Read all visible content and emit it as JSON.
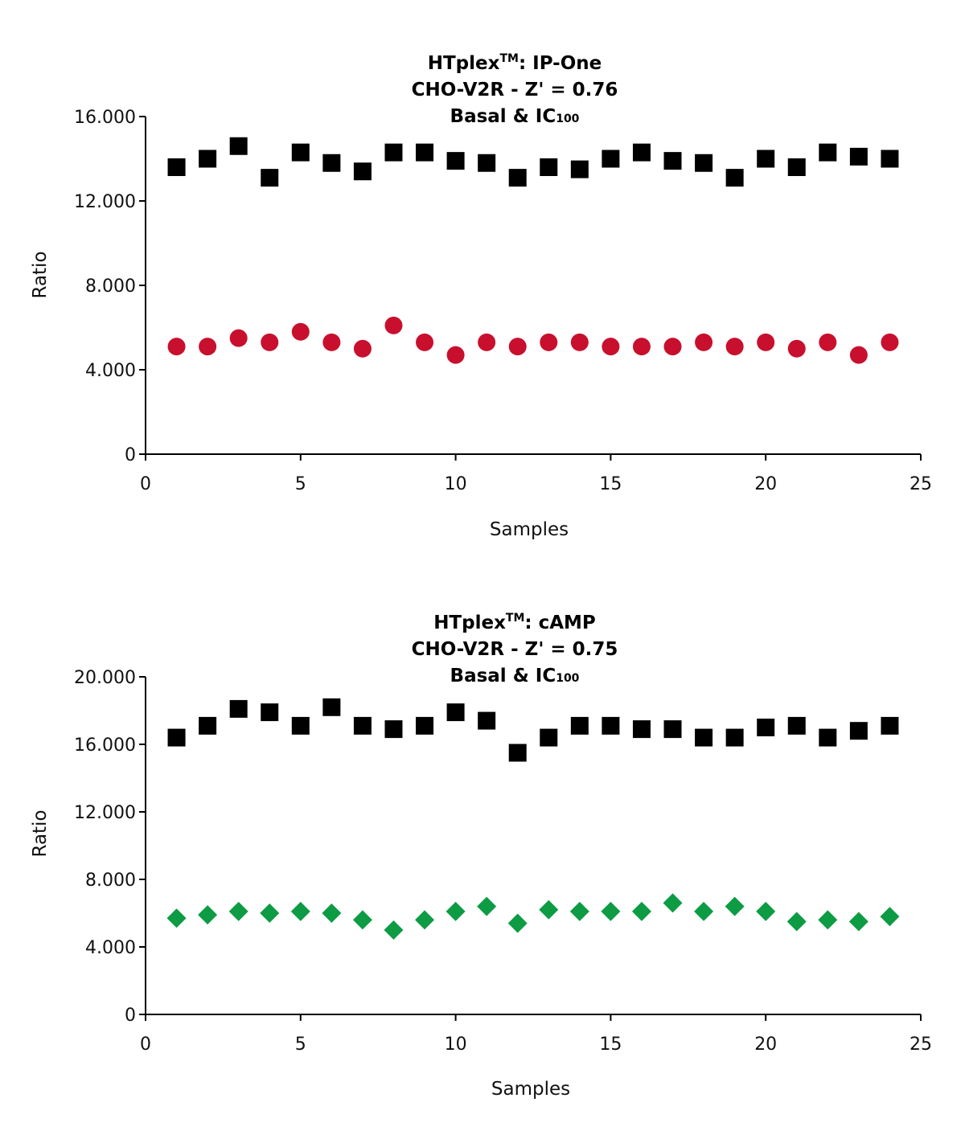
{
  "chart_data": [
    {
      "type": "scatter",
      "title": {
        "line1_main": "HTplex",
        "line1_sup": "TM",
        "line1_rest": ": IP-One",
        "line2": "CHO-V2R - Z' = 0.76",
        "line3_main": "Basal & IC",
        "line3_sub": "100"
      },
      "xlabel": "Samples",
      "ylabel": "Ratio",
      "xlim": [
        0,
        25
      ],
      "ylim": [
        0,
        16000
      ],
      "xticks": [
        0,
        5,
        10,
        15,
        20,
        25
      ],
      "xtick_labels": [
        "0",
        "5",
        "10",
        "15",
        "20",
        "25"
      ],
      "yticks": [
        0,
        4000,
        8000,
        12000,
        16000
      ],
      "ytick_labels": [
        "0",
        "4.000",
        "8.000",
        "12.000",
        "16.000"
      ],
      "grid": false,
      "series": [
        {
          "marker": "square",
          "color": "#000000",
          "x": [
            1,
            2,
            3,
            4,
            5,
            6,
            7,
            8,
            9,
            10,
            11,
            12,
            13,
            14,
            15,
            16,
            17,
            18,
            19,
            20,
            21,
            22,
            23,
            24
          ],
          "values": [
            13600,
            14000,
            14600,
            13100,
            14300,
            13800,
            13400,
            14300,
            14300,
            13900,
            13800,
            13100,
            13600,
            13500,
            14000,
            14300,
            13900,
            13800,
            13100,
            14000,
            13600,
            14300,
            14100,
            14000
          ]
        },
        {
          "marker": "circle",
          "color": "#c8102e",
          "x": [
            1,
            2,
            3,
            4,
            5,
            6,
            7,
            8,
            9,
            10,
            11,
            12,
            13,
            14,
            15,
            16,
            17,
            18,
            19,
            20,
            21,
            22,
            23,
            24
          ],
          "values": [
            5100,
            5100,
            5500,
            5300,
            5800,
            5300,
            5000,
            6100,
            5300,
            4700,
            5300,
            5100,
            5300,
            5300,
            5100,
            5100,
            5100,
            5300,
            5100,
            5300,
            5000,
            5300,
            4700,
            5300
          ]
        }
      ]
    },
    {
      "type": "scatter",
      "title": {
        "line1_main": "HTplex",
        "line1_sup": "TM",
        "line1_rest": ": cAMP",
        "line2": "CHO-V2R - Z' = 0.75",
        "line3_main": "Basal & IC",
        "line3_sub": "100"
      },
      "xlabel": "Samples",
      "ylabel": "Ratio",
      "xlim": [
        0,
        25
      ],
      "ylim": [
        0,
        20000
      ],
      "xticks": [
        0,
        5,
        10,
        15,
        20,
        25
      ],
      "xtick_labels": [
        "0",
        "5",
        "10",
        "15",
        "20",
        "25"
      ],
      "yticks": [
        0,
        4000,
        8000,
        12000,
        16000,
        20000
      ],
      "ytick_labels": [
        "0",
        "4.000",
        "8.000",
        "12.000",
        "16.000",
        "20.000"
      ],
      "grid": false,
      "series": [
        {
          "marker": "square",
          "color": "#000000",
          "x": [
            1,
            2,
            3,
            4,
            5,
            6,
            7,
            8,
            9,
            10,
            11,
            12,
            13,
            14,
            15,
            16,
            17,
            18,
            19,
            20,
            21,
            22,
            23,
            24
          ],
          "values": [
            16400,
            17100,
            18100,
            17900,
            17100,
            18200,
            17100,
            16900,
            17100,
            17900,
            17400,
            15500,
            16400,
            17100,
            17100,
            16900,
            16900,
            16400,
            16400,
            17000,
            17100,
            16400,
            16800,
            17100
          ]
        },
        {
          "marker": "diamond",
          "color": "#0d9b44",
          "x": [
            1,
            2,
            3,
            4,
            5,
            6,
            7,
            8,
            9,
            10,
            11,
            12,
            13,
            14,
            15,
            16,
            17,
            18,
            19,
            20,
            21,
            22,
            23,
            24
          ],
          "values": [
            5700,
            5900,
            6100,
            6000,
            6100,
            6000,
            5600,
            5000,
            5600,
            6100,
            6400,
            5400,
            6200,
            6100,
            6100,
            6100,
            6600,
            6100,
            6400,
            6100,
            5500,
            5600,
            5500,
            5800
          ]
        }
      ]
    }
  ]
}
